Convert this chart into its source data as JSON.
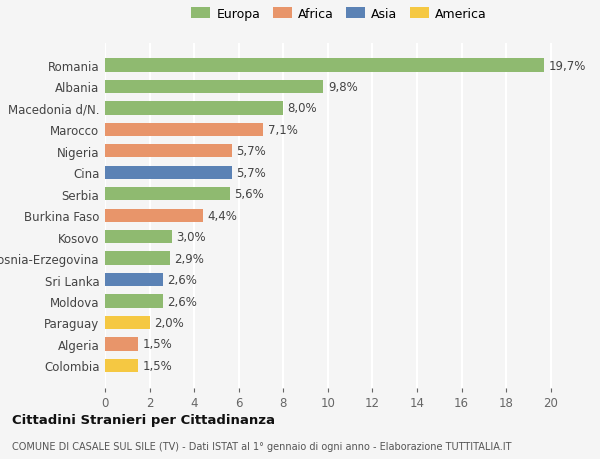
{
  "categories": [
    "Colombia",
    "Algeria",
    "Paraguay",
    "Moldova",
    "Sri Lanka",
    "Bosnia-Erzegovina",
    "Kosovo",
    "Burkina Faso",
    "Serbia",
    "Cina",
    "Nigeria",
    "Marocco",
    "Macedonia d/N.",
    "Albania",
    "Romania"
  ],
  "values": [
    1.5,
    1.5,
    2.0,
    2.6,
    2.6,
    2.9,
    3.0,
    4.4,
    5.6,
    5.7,
    5.7,
    7.1,
    8.0,
    9.8,
    19.7
  ],
  "labels": [
    "1,5%",
    "1,5%",
    "2,0%",
    "2,6%",
    "2,6%",
    "2,9%",
    "3,0%",
    "4,4%",
    "5,6%",
    "5,7%",
    "5,7%",
    "7,1%",
    "8,0%",
    "9,8%",
    "19,7%"
  ],
  "colors": [
    "#f5c842",
    "#e8956a",
    "#f5c842",
    "#8fba70",
    "#5b82b5",
    "#8fba70",
    "#8fba70",
    "#e8956a",
    "#8fba70",
    "#5b82b5",
    "#e8956a",
    "#e8956a",
    "#8fba70",
    "#8fba70",
    "#8fba70"
  ],
  "legend": [
    {
      "label": "Europa",
      "color": "#8fba70"
    },
    {
      "label": "Africa",
      "color": "#e8956a"
    },
    {
      "label": "Asia",
      "color": "#5b82b5"
    },
    {
      "label": "America",
      "color": "#f5c842"
    }
  ],
  "xlim": [
    0,
    21
  ],
  "xticks": [
    0,
    2,
    4,
    6,
    8,
    10,
    12,
    14,
    16,
    18,
    20
  ],
  "title": "Cittadini Stranieri per Cittadinanza",
  "subtitle": "COMUNE DI CASALE SUL SILE (TV) - Dati ISTAT al 1° gennaio di ogni anno - Elaborazione TUTTITALIA.IT",
  "background_color": "#f5f5f5",
  "bar_height": 0.62,
  "label_fontsize": 8.5,
  "tick_fontsize": 8.5,
  "ylabel_fontsize": 8.5,
  "grid_color": "#ffffff",
  "grid_linewidth": 1.5
}
